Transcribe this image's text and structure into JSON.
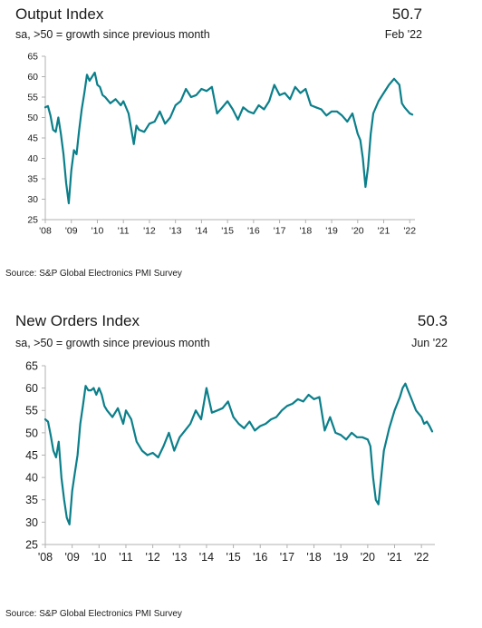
{
  "colors": {
    "line": "#0b7f8a",
    "axis": "#b0b0b0",
    "text": "#1a1a1a"
  },
  "chart_data": [
    {
      "type": "line",
      "title": "Output Index",
      "subtitle": "sa, >50 = growth since previous month",
      "headline_value": "50.7",
      "headline_period": "Feb '22",
      "source": "Source: S&P Global Electronics PMI Survey",
      "ylim": [
        25,
        65
      ],
      "yticks": [
        "25",
        "30",
        "35",
        "40",
        "45",
        "50",
        "55",
        "60",
        "65"
      ],
      "xlim": [
        2008.0,
        2022.2
      ],
      "xticks": [
        "'08",
        "'09",
        "'10",
        "'11",
        "'12",
        "'13",
        "'14",
        "'15",
        "'16",
        "'17",
        "'18",
        "'19",
        "'20",
        "'21",
        "'22"
      ],
      "grid": false,
      "series": [
        {
          "x": [
            2008.0,
            2008.1,
            2008.2,
            2008.3,
            2008.4,
            2008.5,
            2008.6,
            2008.7,
            2008.8,
            2008.9,
            2009.0,
            2009.1,
            2009.2,
            2009.3,
            2009.4,
            2009.5,
            2009.6,
            2009.7,
            2009.8,
            2009.9,
            2010.0,
            2010.1,
            2010.2,
            2010.3,
            2010.5,
            2010.7,
            2010.9,
            2011.0,
            2011.2,
            2011.4,
            2011.5,
            2011.6,
            2011.8,
            2012.0,
            2012.2,
            2012.4,
            2012.6,
            2012.8,
            2013.0,
            2013.2,
            2013.4,
            2013.6,
            2013.8,
            2014.0,
            2014.2,
            2014.4,
            2014.6,
            2014.8,
            2015.0,
            2015.2,
            2015.4,
            2015.6,
            2015.8,
            2016.0,
            2016.2,
            2016.4,
            2016.6,
            2016.8,
            2017.0,
            2017.2,
            2017.4,
            2017.6,
            2017.8,
            2018.0,
            2018.2,
            2018.4,
            2018.6,
            2018.8,
            2019.0,
            2019.2,
            2019.4,
            2019.6,
            2019.8,
            2020.0,
            2020.1,
            2020.2,
            2020.3,
            2020.4,
            2020.5,
            2020.6,
            2020.8,
            2021.0,
            2021.2,
            2021.4,
            2021.6,
            2021.7,
            2021.8,
            2022.0,
            2022.1
          ],
          "y": [
            52.5,
            52.8,
            50.5,
            47.0,
            46.5,
            50.0,
            46.0,
            41.0,
            34.0,
            29.0,
            37.0,
            42.0,
            41.0,
            47.0,
            52.0,
            56.0,
            60.5,
            59.0,
            60.0,
            61.0,
            58.0,
            57.5,
            55.5,
            55.0,
            53.5,
            54.5,
            53.0,
            54.0,
            51.0,
            43.5,
            48.0,
            47.0,
            46.5,
            48.5,
            49.0,
            51.5,
            48.5,
            50.0,
            53.0,
            54.0,
            57.0,
            55.0,
            55.5,
            57.0,
            56.5,
            57.5,
            51.0,
            52.5,
            54.0,
            52.0,
            49.5,
            52.5,
            51.5,
            51.0,
            53.0,
            52.0,
            54.0,
            58.0,
            55.5,
            56.0,
            54.5,
            57.5,
            56.0,
            57.0,
            53.0,
            52.5,
            52.0,
            50.5,
            51.5,
            51.5,
            50.5,
            49.0,
            51.0,
            46.0,
            44.5,
            40.0,
            33.0,
            38.0,
            46.0,
            51.0,
            54.0,
            56.0,
            58.0,
            59.5,
            58.0,
            53.5,
            52.5,
            51.0,
            50.7
          ]
        }
      ]
    },
    {
      "type": "line",
      "title": "New Orders Index",
      "subtitle": "sa, >50 = growth since previous month",
      "headline_value": "50.3",
      "headline_period": "Jun '22",
      "source": "Source: S&P Global Electronics PMI Survey",
      "ylim": [
        25,
        65
      ],
      "yticks": [
        "25",
        "30",
        "35",
        "40",
        "45",
        "50",
        "55",
        "60",
        "65"
      ],
      "xlim": [
        2008.0,
        2022.5
      ],
      "xticks": [
        "'08",
        "'09",
        "'10",
        "'11",
        "'12",
        "'13",
        "'14",
        "'15",
        "'16",
        "'17",
        "'18",
        "'19",
        "'20",
        "'21",
        "'22"
      ],
      "grid": false,
      "series": [
        {
          "x": [
            2008.0,
            2008.1,
            2008.2,
            2008.3,
            2008.4,
            2008.5,
            2008.6,
            2008.7,
            2008.8,
            2008.9,
            2009.0,
            2009.1,
            2009.2,
            2009.3,
            2009.4,
            2009.5,
            2009.6,
            2009.7,
            2009.8,
            2009.9,
            2010.0,
            2010.1,
            2010.2,
            2010.3,
            2010.5,
            2010.7,
            2010.9,
            2011.0,
            2011.2,
            2011.4,
            2011.6,
            2011.8,
            2012.0,
            2012.2,
            2012.4,
            2012.6,
            2012.8,
            2013.0,
            2013.2,
            2013.4,
            2013.6,
            2013.8,
            2014.0,
            2014.2,
            2014.4,
            2014.6,
            2014.8,
            2015.0,
            2015.2,
            2015.4,
            2015.6,
            2015.8,
            2016.0,
            2016.2,
            2016.4,
            2016.6,
            2016.8,
            2017.0,
            2017.2,
            2017.4,
            2017.6,
            2017.8,
            2018.0,
            2018.2,
            2018.4,
            2018.6,
            2018.8,
            2019.0,
            2019.2,
            2019.4,
            2019.6,
            2019.8,
            2020.0,
            2020.1,
            2020.2,
            2020.3,
            2020.4,
            2020.5,
            2020.6,
            2020.8,
            2021.0,
            2021.2,
            2021.3,
            2021.4,
            2021.5,
            2021.6,
            2021.8,
            2022.0,
            2022.1,
            2022.2,
            2022.3,
            2022.4
          ],
          "y": [
            53.0,
            52.5,
            49.5,
            46.0,
            44.5,
            48.0,
            40.0,
            35.0,
            31.0,
            29.5,
            37.0,
            41.0,
            45.0,
            52.0,
            56.0,
            60.5,
            59.5,
            59.5,
            60.0,
            58.5,
            60.0,
            58.5,
            56.0,
            55.0,
            53.5,
            55.5,
            52.0,
            55.0,
            53.0,
            48.0,
            46.0,
            45.0,
            45.5,
            44.5,
            47.0,
            50.0,
            46.0,
            49.0,
            50.5,
            52.0,
            55.0,
            53.0,
            60.0,
            54.5,
            55.0,
            55.5,
            57.0,
            53.5,
            52.0,
            51.0,
            52.5,
            50.5,
            51.5,
            52.0,
            53.0,
            53.5,
            55.0,
            56.0,
            56.5,
            57.5,
            57.0,
            58.5,
            57.5,
            58.0,
            50.5,
            53.5,
            50.0,
            49.5,
            48.5,
            50.0,
            49.0,
            49.0,
            48.5,
            47.0,
            40.0,
            35.0,
            34.0,
            40.0,
            46.0,
            51.0,
            55.0,
            58.0,
            60.0,
            61.0,
            59.5,
            58.0,
            55.0,
            53.5,
            52.0,
            52.5,
            51.5,
            50.3
          ]
        }
      ]
    }
  ]
}
